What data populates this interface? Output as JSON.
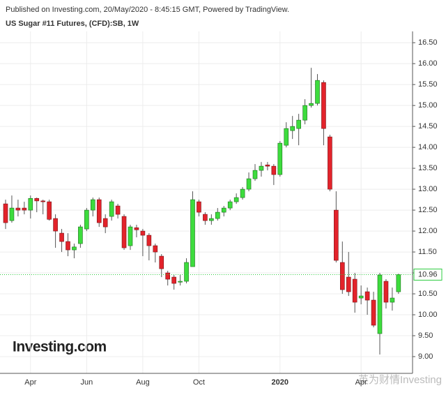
{
  "chart_data": {
    "type": "candlestick",
    "header": "Published on Investing.com, 20/May/2020 - 8:45:15 GMT, Powered by TradingView.",
    "title": "US Sugar #11 Futures, (CFD):SB, 1W",
    "logo": "Investing.com",
    "watermark": "英为财情Investing",
    "categories": [
      null,
      null,
      null,
      null,
      "Apr",
      null,
      null,
      null,
      null,
      null,
      null,
      null,
      null,
      "Jun",
      null,
      null,
      null,
      null,
      null,
      null,
      null,
      null,
      "Aug",
      null,
      null,
      null,
      null,
      null,
      null,
      null,
      null,
      "Oct",
      null,
      null,
      null,
      null,
      null,
      null,
      null,
      null,
      null,
      null,
      null,
      null,
      "2020",
      null,
      null,
      null,
      null,
      null,
      null,
      null,
      null,
      null,
      null,
      null,
      null,
      "Apr",
      null,
      null,
      null,
      null,
      null,
      null
    ],
    "open": [
      12.65,
      12.25,
      12.55,
      12.55,
      12.5,
      12.78,
      12.72,
      12.7,
      12.3,
      11.95,
      11.75,
      11.55,
      11.7,
      12.05,
      12.5,
      12.75,
      12.3,
      12.35,
      12.6,
      12.35,
      11.65,
      12.08,
      12.0,
      11.9,
      11.65,
      11.4,
      11.0,
      10.9,
      10.78,
      10.8,
      11.15,
      12.7,
      12.4,
      12.25,
      12.3,
      12.45,
      12.55,
      12.7,
      12.8,
      13.0,
      13.25,
      13.45,
      13.58,
      13.55,
      13.35,
      14.05,
      14.4,
      14.45,
      14.65,
      15.0,
      15.05,
      15.55,
      14.25,
      12.5,
      11.25,
      10.9,
      10.85,
      10.4,
      10.55,
      10.35,
      9.55,
      10.8,
      10.3,
      10.55
    ],
    "high": [
      12.75,
      12.85,
      12.75,
      12.7,
      12.85,
      12.8,
      12.75,
      12.75,
      12.4,
      12.05,
      11.95,
      11.7,
      12.15,
      12.55,
      12.8,
      12.8,
      12.4,
      12.75,
      12.65,
      12.4,
      12.15,
      12.15,
      12.05,
      11.95,
      11.7,
      11.45,
      11.05,
      10.95,
      10.95,
      11.35,
      12.95,
      12.75,
      12.45,
      12.4,
      12.55,
      12.6,
      12.75,
      12.9,
      13.05,
      13.4,
      13.6,
      13.65,
      13.65,
      13.6,
      14.15,
      14.6,
      14.75,
      14.8,
      15.15,
      15.9,
      15.75,
      15.6,
      14.3,
      12.95,
      11.75,
      11.5,
      11.0,
      10.7,
      10.65,
      10.55,
      11.0,
      10.85,
      10.65,
      10.98
    ],
    "low": [
      12.05,
      12.2,
      12.35,
      12.4,
      12.3,
      12.45,
      12.4,
      12.25,
      11.6,
      11.5,
      11.4,
      11.35,
      11.6,
      12.0,
      12.35,
      12.1,
      11.95,
      12.25,
      12.3,
      11.55,
      11.55,
      11.85,
      11.4,
      11.3,
      11.25,
      10.9,
      10.7,
      10.6,
      10.7,
      10.75,
      11.15,
      12.35,
      12.15,
      12.15,
      12.25,
      12.35,
      12.5,
      12.65,
      12.75,
      12.95,
      13.2,
      13.3,
      13.45,
      13.1,
      13.3,
      14.0,
      14.2,
      14.05,
      14.55,
      14.95,
      15.0,
      14.05,
      12.95,
      11.25,
      10.5,
      10.45,
      10.05,
      10.25,
      10.0,
      9.7,
      9.05,
      10.15,
      10.1,
      10.5
    ],
    "close": [
      12.2,
      12.55,
      12.5,
      12.5,
      12.78,
      12.72,
      12.7,
      12.28,
      12.0,
      11.75,
      11.55,
      11.62,
      12.1,
      12.5,
      12.75,
      12.2,
      12.1,
      12.7,
      12.4,
      11.6,
      12.1,
      12.03,
      11.9,
      11.65,
      11.5,
      11.1,
      10.85,
      10.75,
      10.8,
      11.25,
      12.75,
      12.45,
      12.25,
      12.3,
      12.45,
      12.55,
      12.7,
      12.8,
      13.0,
      13.25,
      13.45,
      13.55,
      13.55,
      13.35,
      14.1,
      14.45,
      14.5,
      14.65,
      15.0,
      15.05,
      15.6,
      14.45,
      13.0,
      11.3,
      10.6,
      10.55,
      10.3,
      10.45,
      10.35,
      9.75,
      10.95,
      10.3,
      10.4,
      10.96
    ],
    "up_color": "#3ddc3d",
    "down_color": "#e3232b",
    "last_price": 10.96,
    "last_price_color": "#2ecc40",
    "ylim": [
      8.6,
      16.77
    ],
    "yticks": [
      {
        "value": 9,
        "label": "9.00"
      },
      {
        "value": 9.5,
        "label": "9.50"
      },
      {
        "value": 10,
        "label": "10.00"
      },
      {
        "value": 10.5,
        "label": "10.50"
      },
      {
        "value": 11,
        "label": "11.00"
      },
      {
        "value": 11.5,
        "label": "11.50"
      },
      {
        "value": 12,
        "label": "12.00"
      },
      {
        "value": 12.5,
        "label": "12.50"
      },
      {
        "value": 13,
        "label": "13.00"
      },
      {
        "value": 13.5,
        "label": "13.50"
      },
      {
        "value": 14,
        "label": "14.00"
      },
      {
        "value": 14.5,
        "label": "14.50"
      },
      {
        "value": 15,
        "label": "15.00"
      },
      {
        "value": 15.5,
        "label": "15.50"
      },
      {
        "value": 16,
        "label": "16.00"
      },
      {
        "value": 16.5,
        "label": "16.50"
      }
    ],
    "grid": true
  }
}
